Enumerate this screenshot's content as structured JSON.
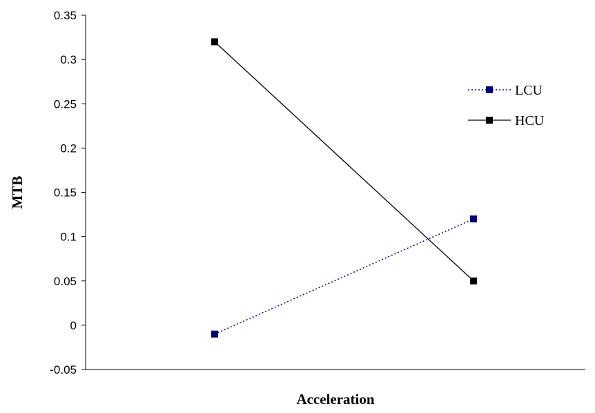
{
  "chart_data": {
    "type": "line",
    "xlabel": "Acceleration",
    "ylabel": "MTB",
    "ylim": [
      -0.05,
      0.35
    ],
    "yticks": [
      "-0.05",
      "0",
      "0.05",
      "0.1",
      "0.15",
      "0.2",
      "0.25",
      "0.3",
      "0.35"
    ],
    "grid": false,
    "legend_position": "top-right",
    "series": [
      {
        "name": "LCU",
        "values": [
          -0.01,
          0.12
        ],
        "color": "#000080",
        "style": "dotted",
        "marker": "square"
      },
      {
        "name": "HCU",
        "values": [
          0.32,
          0.05
        ],
        "color": "#000000",
        "style": "solid",
        "marker": "square"
      }
    ]
  }
}
